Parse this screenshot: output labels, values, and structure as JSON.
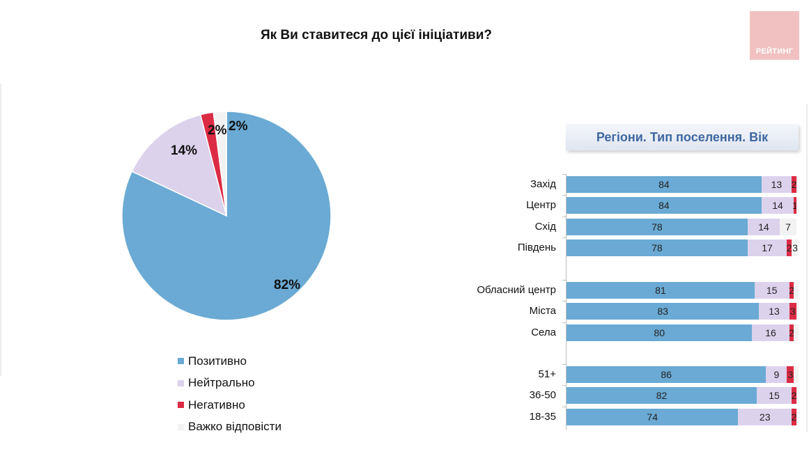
{
  "title": "Як Ви ставитеся до цієї ініціативи?",
  "logo_text": "РЕЙТИНГ",
  "panel_header": "Регіони. Тип поселення. Вік",
  "colors": {
    "positive": "#6aaad4",
    "neutral": "#dcd2ec",
    "negative": "#dc2b44",
    "hard": "#f2f2f2"
  },
  "chart_data": [
    {
      "type": "pie",
      "title": "Як Ви ставитеся до цієї ініціативи?",
      "slices": [
        {
          "name": "Позитивно",
          "value": 82,
          "label": "82%",
          "color": "#6aaad4"
        },
        {
          "name": "Нейтрально",
          "value": 14,
          "label": "14%",
          "color": "#dcd2ec"
        },
        {
          "name": "Негативно",
          "value": 2,
          "label": "2%",
          "color": "#dc2b44"
        },
        {
          "name": "Важко відповісти",
          "value": 2,
          "label": "2%",
          "color": "#f2f2f2"
        }
      ],
      "legend": [
        "Позитивно",
        "Нейтрально",
        "Негативно",
        "Важко відповісти"
      ],
      "legend_position": "bottom"
    },
    {
      "type": "bar",
      "orientation": "horizontal",
      "stacked": true,
      "title": "Регіони. Тип поселення. Вік",
      "xlim": [
        0,
        100
      ],
      "groups": [
        {
          "rows": [
            {
              "label": "Захід",
              "values": [
                84,
                13,
                2,
                1
              ],
              "value_labels": [
                "84",
                "13",
                "2",
                ""
              ]
            },
            {
              "label": "Центр",
              "values": [
                84,
                14,
                1,
                1
              ],
              "value_labels": [
                "84",
                "14",
                "1",
                ""
              ]
            },
            {
              "label": "Схід",
              "values": [
                78,
                14,
                0,
                7
              ],
              "value_labels": [
                "78",
                "14",
                "",
                "7"
              ]
            },
            {
              "label": "Південь",
              "values": [
                78,
                17,
                2,
                3
              ],
              "value_labels": [
                "78",
                "17",
                "2",
                "3"
              ]
            }
          ]
        },
        {
          "rows": [
            {
              "label": "Обласний центр",
              "values": [
                81,
                15,
                2,
                2
              ],
              "value_labels": [
                "81",
                "15",
                "2",
                ""
              ]
            },
            {
              "label": "Міста",
              "values": [
                83,
                13,
                3,
                1
              ],
              "value_labels": [
                "83",
                "13",
                "3",
                ""
              ]
            },
            {
              "label": "Села",
              "values": [
                80,
                16,
                2,
                2
              ],
              "value_labels": [
                "80",
                "16",
                "2",
                ""
              ]
            }
          ]
        },
        {
          "rows": [
            {
              "label": "51+",
              "values": [
                86,
                9,
                3,
                2
              ],
              "value_labels": [
                "86",
                "9",
                "3",
                ""
              ]
            },
            {
              "label": "36-50",
              "values": [
                82,
                15,
                2,
                1
              ],
              "value_labels": [
                "82",
                "15",
                "2",
                ""
              ]
            },
            {
              "label": "18-35",
              "values": [
                74,
                23,
                2,
                1
              ],
              "value_labels": [
                "74",
                "23",
                "2",
                ""
              ]
            }
          ]
        }
      ],
      "series": [
        {
          "name": "Позитивно",
          "color": "#6aaad4"
        },
        {
          "name": "Нейтрально",
          "color": "#dcd2ec"
        },
        {
          "name": "Негативно",
          "color": "#dc2b44"
        },
        {
          "name": "Важко відповісти",
          "color": "#f2f2f2"
        }
      ]
    }
  ]
}
